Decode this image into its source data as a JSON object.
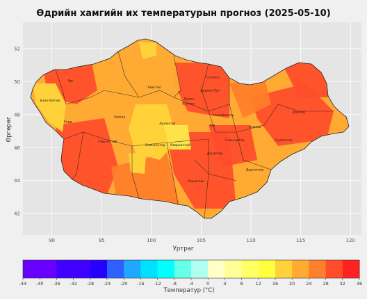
{
  "title": "Өдрийн хамгийн их температурын прогноз (2025-05-10)",
  "map": {
    "xlabel": "Уртраг",
    "ylabel": "Өргөрөг",
    "x_ticks": [
      90,
      95,
      100,
      105,
      110,
      115,
      120
    ],
    "y_ticks": [
      42,
      44,
      46,
      48,
      50,
      52
    ],
    "xlim": [
      87.1,
      121.1
    ],
    "ylim": [
      40.7,
      53.6
    ],
    "grid": true,
    "background": "#e5e5e5",
    "region_labels": [
      {
        "name": "Увс",
        "lon": 91.9,
        "lat": 50.0
      },
      {
        "name": "Баян-Өлгий",
        "lon": 89.8,
        "lat": 48.8
      },
      {
        "name": "Ховд",
        "lon": 91.6,
        "lat": 47.5
      },
      {
        "name": "Завхан",
        "lon": 96.8,
        "lat": 47.8
      },
      {
        "name": "Хөвсгөл",
        "lon": 100.3,
        "lat": 49.6
      },
      {
        "name": "Архангай",
        "lon": 101.6,
        "lat": 47.4
      },
      {
        "name": "Булган",
        "lon": 103.7,
        "lat": 48.6
      },
      {
        "name": "Орхон",
        "lon": 103.8,
        "lat": 48.9
      },
      {
        "name": "Сэлэнгэ",
        "lon": 106.2,
        "lat": 50.2
      },
      {
        "name": "Дархан-Уул",
        "lon": 105.9,
        "lat": 49.4
      },
      {
        "name": "Төв",
        "lon": 106.1,
        "lat": 47.3
      },
      {
        "name": "Улаанбаатар",
        "lon": 107.2,
        "lat": 47.9
      },
      {
        "name": "Хэнтий",
        "lon": 110.4,
        "lat": 47.2
      },
      {
        "name": "Дорнод",
        "lon": 114.8,
        "lat": 48.1
      },
      {
        "name": "Сүхбаатар",
        "lon": 113.3,
        "lat": 46.4
      },
      {
        "name": "Говь-Алтай",
        "lon": 95.6,
        "lat": 46.3
      },
      {
        "name": "Баянхонгор",
        "lon": 100.4,
        "lat": 46.1
      },
      {
        "name": "Өвөрхангай",
        "lon": 102.9,
        "lat": 46.1
      },
      {
        "name": "Дундговь",
        "lon": 106.4,
        "lat": 45.6
      },
      {
        "name": "Говьсүмбэр",
        "lon": 108.4,
        "lat": 46.4
      },
      {
        "name": "Дорноговь",
        "lon": 110.4,
        "lat": 44.6
      },
      {
        "name": "Өмнөговь",
        "lon": 104.5,
        "lat": 43.9
      }
    ]
  },
  "colorbar": {
    "label": "Температур (°C)",
    "ticks": [
      -44,
      -40,
      -36,
      -32,
      -28,
      -24,
      -20,
      -16,
      -12,
      -8,
      -4,
      0,
      4,
      8,
      12,
      16,
      20,
      24,
      28,
      32,
      36
    ],
    "colors": [
      "#6600ff",
      "#6600ff",
      "#4000ff",
      "#4000ff",
      "#2600ff",
      "#2e60ff",
      "#20a8ff",
      "#00e0ff",
      "#00ffff",
      "#66ffe8",
      "#b0fff0",
      "#ffffc8",
      "#ffff99",
      "#ffff66",
      "#ffff40",
      "#ffd23a",
      "#ffaa33",
      "#ff7f2a",
      "#ff4c2a",
      "#ff2222"
    ]
  },
  "colors": {
    "ocean": "#e5e5e5",
    "band_16_20": "#ffd23a",
    "band_20_24": "#ffaa33",
    "band_24_28": "#ff7f2a",
    "band_28_32": "#ff4c2a",
    "boundary": "#222222"
  }
}
